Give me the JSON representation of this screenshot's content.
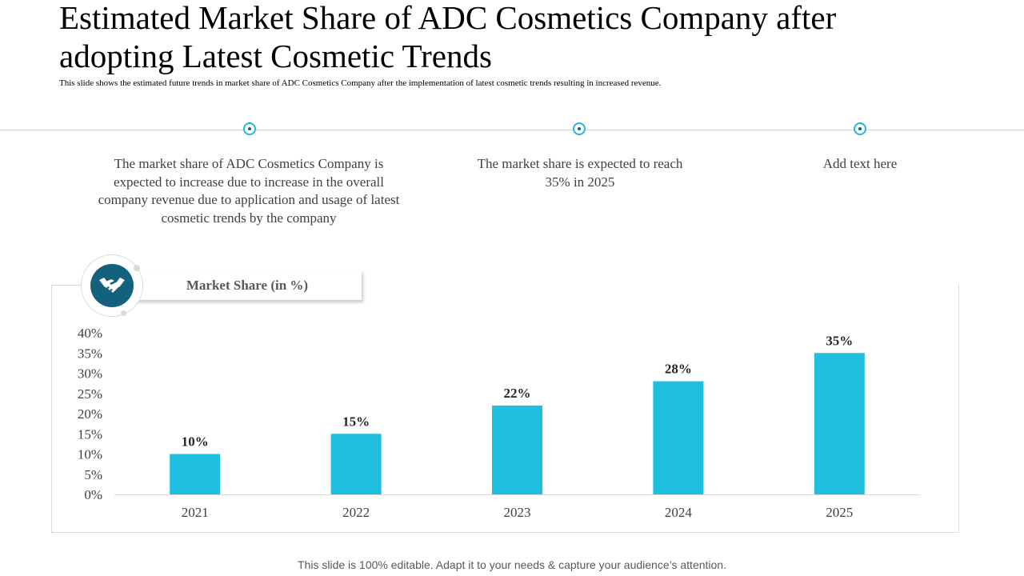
{
  "slide": {
    "title": "Estimated Market Share of ADC Cosmetics Company after adopting Latest Cosmetic Trends",
    "subtitle": "This slide shows the estimated future trends in market  share of ADC Cosmetics Company after the implementation  of latest cosmetic trends resulting in increased revenue.",
    "footer": "This slide is 100% editable. Adapt it to your needs & capture your audience’s attention."
  },
  "timeline": {
    "points": [
      {
        "text": "The market share of ADC Cosmetics Company is expected to increase due to increase in the overall company revenue  due to application and usage of latest cosmetic trends by the company"
      },
      {
        "text": "The market share is expected to reach 35% in 2025"
      },
      {
        "text": "Add text here"
      }
    ]
  },
  "chart_header": {
    "label": "Market Share (in %)",
    "icon": "handshake-icon"
  },
  "colors": {
    "bar": "#1fbfe0",
    "accent_dark": "#14617d",
    "accent_ring": "#21b8d9"
  },
  "chart_data": {
    "type": "bar",
    "title": "Market Share (in %)",
    "categories": [
      "2021",
      "2022",
      "2023",
      "2024",
      "2025"
    ],
    "values": [
      10,
      15,
      22,
      28,
      35
    ],
    "data_labels": [
      "10%",
      "15%",
      "22%",
      "28%",
      "35%"
    ],
    "xlabel": "",
    "ylabel": "",
    "ylim": [
      0,
      40
    ],
    "yticks": [
      0,
      5,
      10,
      15,
      20,
      25,
      30,
      35,
      40
    ],
    "ytick_labels": [
      "0%",
      "5%",
      "10%",
      "15%",
      "20%",
      "25%",
      "30%",
      "35%",
      "40%"
    ],
    "grid": false,
    "legend": "none"
  }
}
